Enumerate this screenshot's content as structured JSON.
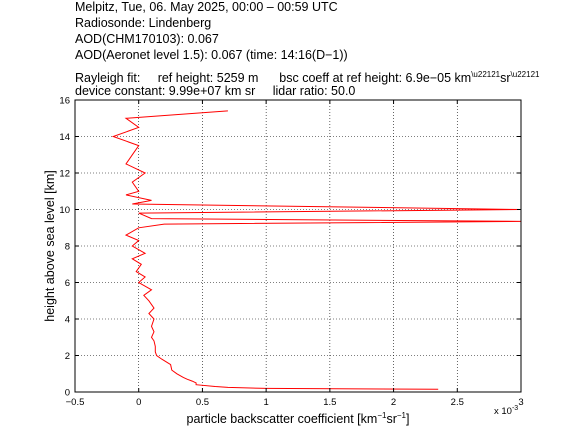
{
  "header": {
    "line1": "Melpitz, Tue, 06. May 2025, 00:00 – 00:59 UTC",
    "line2": "Radiosonde: Lindenberg",
    "line3": "AOD(CHM170103): 0.067",
    "line4": "AOD(Aeronet level 1.5): 0.067   (time: 14:16(D−1))",
    "rayleigh_label": "Rayleigh fit:",
    "ref_height": "ref height: 5259 m",
    "bsc_coeff_prefix": "bsc coeff at ref height: 6.9e−05 km",
    "bsc_coeff_mid": "sr",
    "device_constant": "device constant: 9.99e+07 km sr",
    "lidar_ratio": "lidar ratio: 50.0"
  },
  "chart_data": {
    "type": "line",
    "xlabel_main": "particle backscatter coefficient [km",
    "xlabel_mid": "sr",
    "xlabel_end": "]",
    "ylabel": "height above sea level [km]",
    "x_multiplier": "x 10",
    "x_multiplier_exp": "-3",
    "xlim": [
      -0.5,
      3.0
    ],
    "ylim": [
      0,
      16
    ],
    "xticks": [
      -0.5,
      0,
      0.5,
      1,
      1.5,
      2,
      2.5,
      3
    ],
    "xtick_labels": [
      "−0.5",
      "0",
      "0.5",
      "1",
      "1.5",
      "2",
      "2.5",
      "3"
    ],
    "yticks": [
      0,
      2,
      4,
      6,
      8,
      10,
      12,
      14,
      16
    ],
    "ytick_labels": [
      "0",
      "2",
      "4",
      "6",
      "8",
      "10",
      "12",
      "14",
      "16"
    ],
    "grid": true,
    "series_color": "#ff0000",
    "series": [
      {
        "name": "",
        "y": [
          0.15,
          0.2,
          0.25,
          0.3,
          0.4,
          0.5,
          0.6,
          0.7,
          0.8,
          1.0,
          1.2,
          1.5,
          1.8,
          2.0,
          2.2,
          2.5,
          2.8,
          3.0,
          3.3,
          3.6,
          4.0,
          4.3,
          4.6,
          5.0,
          5.3,
          5.6,
          6.0,
          6.3,
          6.6,
          7.0,
          7.3,
          7.6,
          8.0,
          8.3,
          8.6,
          9.0,
          9.2,
          9.35,
          9.5,
          9.8,
          10.0,
          10.3,
          10.5,
          10.8,
          11.0,
          11.5,
          12.0,
          12.5,
          13.0,
          13.5,
          14.0,
          14.5,
          15.0,
          15.4
        ],
        "x": [
          2.35,
          1.0,
          0.7,
          0.6,
          0.45,
          0.45,
          0.42,
          0.38,
          0.35,
          0.3,
          0.26,
          0.25,
          0.18,
          0.14,
          0.13,
          0.13,
          0.12,
          0.1,
          0.12,
          0.1,
          0.12,
          0.08,
          0.12,
          0.08,
          0.04,
          0.1,
          0.0,
          0.05,
          -0.02,
          0.02,
          -0.05,
          0.05,
          -0.05,
          0.0,
          -0.1,
          0.0,
          0.2,
          3.0,
          0.1,
          0.0,
          3.0,
          -0.05,
          0.1,
          -0.1,
          0.0,
          -0.05,
          0.05,
          -0.1,
          -0.05,
          0.0,
          -0.2,
          0.0,
          -0.1,
          0.7
        ]
      }
    ]
  }
}
